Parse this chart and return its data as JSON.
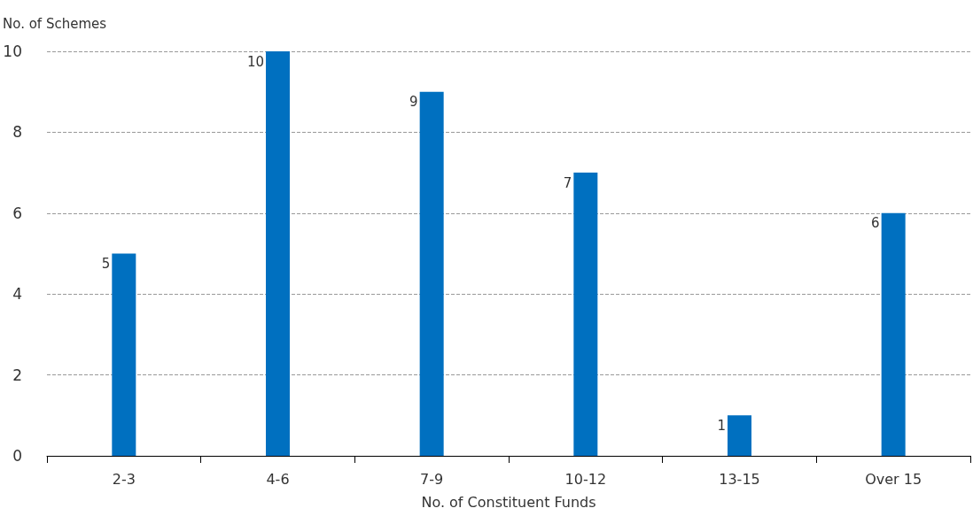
{
  "chart_data": {
    "type": "bar",
    "xlabel": "No. of Constituent Funds",
    "ylabel": "No. of Schemes",
    "categories": [
      "2-3",
      "4-6",
      "7-9",
      "10-12",
      "13-15",
      "Over 15"
    ],
    "values": [
      5,
      10,
      9,
      7,
      1,
      6
    ],
    "color": "#0070c0",
    "ylim": [
      0,
      10
    ],
    "yticks": [
      0,
      2,
      4,
      6,
      8,
      10
    ],
    "grid": "y",
    "data_labels": true
  }
}
